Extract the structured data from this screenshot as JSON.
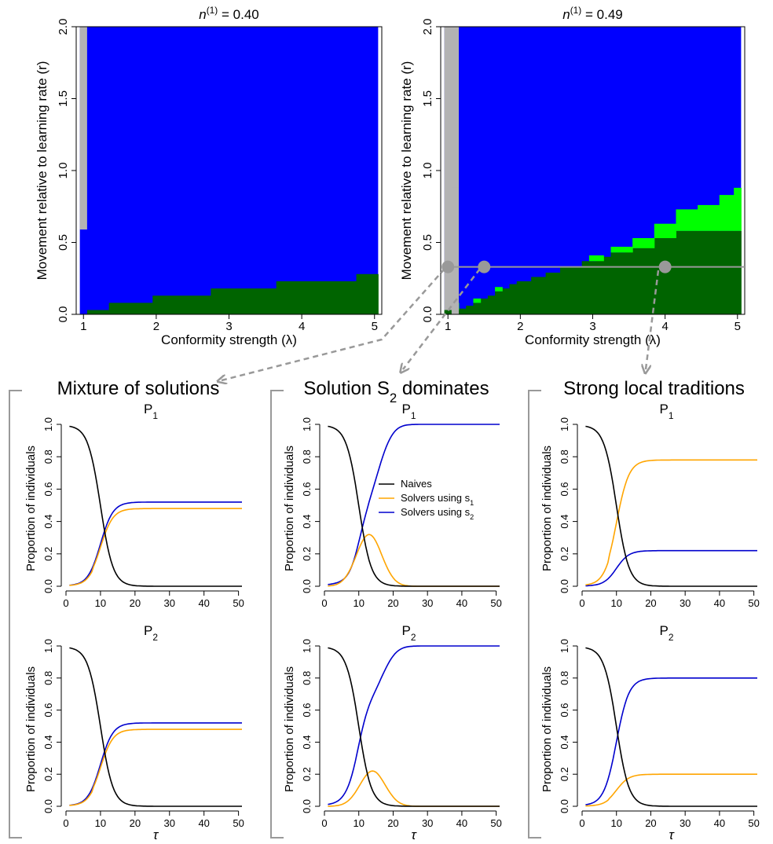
{
  "colors": {
    "gray": "#b3b3b3",
    "blue": "#0000ff",
    "darkgreen": "#006400",
    "lightgreen": "#00ff00",
    "naive": "#000000",
    "s1": "#ffa500",
    "s2": "#0000cd",
    "arrow": "#999999"
  },
  "heatmaps": [
    {
      "title_pre": "n",
      "title_sup": "(1)",
      "title_post": " = 0.40",
      "xlabel": "Conformity strength (λ)",
      "ylabel": "Movement relative to learning rate (r)",
      "xticks": [
        "1",
        "2",
        "3",
        "4",
        "5"
      ],
      "yticks": [
        "0.0",
        "0.5",
        "1.0",
        "1.5",
        "2.0"
      ],
      "xlim": [
        0.9,
        5.1
      ],
      "ylim": [
        0,
        2
      ],
      "gray_band": {
        "x": [
          0.95,
          1.05
        ],
        "r_min": 0.59
      },
      "dark_steps": [
        [
          1.05,
          1.35,
          0.03
        ],
        [
          1.35,
          1.95,
          0.08
        ],
        [
          1.95,
          2.75,
          0.13
        ],
        [
          2.75,
          3.65,
          0.18
        ],
        [
          3.65,
          4.75,
          0.23
        ],
        [
          4.75,
          5.05,
          0.28
        ]
      ],
      "light_steps": [],
      "line_r": null,
      "points": []
    },
    {
      "title_pre": "n",
      "title_sup": "(1)",
      "title_post": " = 0.49",
      "xlabel": "Conformity strength (λ)",
      "ylabel": "Movement relative to learning rate (r)",
      "xticks": [
        "1",
        "2",
        "3",
        "4",
        "5"
      ],
      "yticks": [
        "0.0",
        "0.5",
        "1.0",
        "1.5",
        "2.0"
      ],
      "xlim": [
        0.9,
        5.1
      ],
      "ylim": [
        0,
        2
      ],
      "gray_band": {
        "x": [
          0.95,
          1.15
        ],
        "r_min": 0.0
      },
      "dark_steps": [
        [
          1.05,
          1.15,
          0.03
        ],
        [
          1.15,
          1.25,
          0.04
        ],
        [
          1.25,
          1.35,
          0.06
        ],
        [
          1.35,
          1.45,
          0.08
        ],
        [
          1.45,
          1.55,
          0.11
        ],
        [
          1.55,
          1.65,
          0.13
        ],
        [
          1.65,
          1.75,
          0.16
        ],
        [
          1.75,
          1.85,
          0.18
        ],
        [
          1.85,
          1.95,
          0.21
        ],
        [
          1.95,
          2.15,
          0.23
        ],
        [
          2.15,
          2.35,
          0.26
        ],
        [
          2.35,
          2.55,
          0.29
        ],
        [
          2.55,
          2.85,
          0.33
        ],
        [
          2.85,
          3.05,
          0.37
        ],
        [
          3.05,
          3.25,
          0.4
        ],
        [
          3.25,
          3.45,
          0.43
        ],
        [
          3.45,
          3.65,
          0.46
        ],
        [
          3.65,
          3.85,
          0.49
        ],
        [
          3.85,
          4.15,
          0.53
        ],
        [
          4.15,
          5.05,
          0.58
        ]
      ],
      "light_steps": [
        [
          1.05,
          1.15,
          0.08
        ],
        [
          1.35,
          1.45,
          0.11
        ],
        [
          1.65,
          1.75,
          0.19
        ],
        [
          2.95,
          3.15,
          0.41
        ],
        [
          3.25,
          3.55,
          0.47
        ],
        [
          3.55,
          3.85,
          0.53
        ],
        [
          3.85,
          4.15,
          0.63
        ],
        [
          4.15,
          4.45,
          0.73
        ],
        [
          4.45,
          4.75,
          0.76
        ],
        [
          4.75,
          4.95,
          0.83
        ],
        [
          4.95,
          5.05,
          0.88
        ]
      ],
      "line_r": 0.33,
      "points": [
        [
          1.0,
          0.33
        ],
        [
          1.5,
          0.33
        ],
        [
          4.0,
          0.33
        ]
      ]
    }
  ],
  "panels": [
    {
      "title": "Mixture of solutions",
      "title_sub": ""
    },
    {
      "title": "Solution S",
      "title_sub": "2",
      "title_post": " dominates"
    },
    {
      "title": "Strong local traditions",
      "title_sub": ""
    }
  ],
  "subplot_labels": [
    {
      "main": "P",
      "sub": "1"
    },
    {
      "main": "P",
      "sub": "2"
    }
  ],
  "line_axes": {
    "ylabel": "Proportion of individuals",
    "xlabel": "τ",
    "xticks": [
      "0",
      "10",
      "20",
      "30",
      "40",
      "50"
    ],
    "yticks": [
      "0.0",
      "0.2",
      "0.4",
      "0.6",
      "0.8",
      "1.0"
    ]
  },
  "legend": [
    {
      "label": "Naives",
      "sub": "",
      "color": "#000000"
    },
    {
      "label": "Solvers using s",
      "sub": "1",
      "color": "#ffa500"
    },
    {
      "label": "Solvers using s",
      "sub": "2",
      "color": "#0000cd"
    }
  ],
  "chart_data": [
    {
      "type": "heatmap",
      "title": "n(1) = 0.40",
      "xlabel": "Conformity strength (λ)",
      "ylabel": "Movement relative to learning rate (r)",
      "xlim": [
        0.9,
        5.1
      ],
      "ylim": [
        0,
        2
      ]
    },
    {
      "type": "heatmap",
      "title": "n(1) = 0.49",
      "xlabel": "Conformity strength (λ)",
      "ylabel": "Movement relative to learning rate (r)",
      "xlim": [
        0.9,
        5.1
      ],
      "ylim": [
        0,
        2
      ]
    },
    {
      "type": "line",
      "panel": "Mixture of solutions",
      "x_range": [
        1,
        51
      ],
      "ylim": [
        0,
        1
      ],
      "P1": {
        "naive_mid": 10,
        "naive_start": 0.99,
        "s1_final": 0.48,
        "s2_final": 0.52
      },
      "P2": {
        "naive_mid": 10,
        "naive_start": 0.99,
        "s1_final": 0.48,
        "s2_final": 0.52
      }
    },
    {
      "type": "line",
      "panel": "Solution S2 dominates",
      "x_range": [
        1,
        51
      ],
      "ylim": [
        0,
        1
      ],
      "P1": {
        "naive_mid": 10,
        "naive_start": 0.99,
        "s1_peak": 0.32,
        "s1_peak_tau": 13,
        "s2_final": 1.0
      },
      "P2": {
        "naive_mid": 10,
        "naive_start": 0.99,
        "s1_peak": 0.22,
        "s1_peak_tau": 14,
        "s2_final": 1.0
      }
    },
    {
      "type": "line",
      "panel": "Strong local traditions",
      "x_range": [
        1,
        51
      ],
      "ylim": [
        0,
        1
      ],
      "P1": {
        "naive_mid": 10,
        "naive_start": 0.99,
        "s1_final": 0.78,
        "s2_final": 0.22
      },
      "P2": {
        "naive_mid": 10,
        "naive_start": 0.99,
        "s1_final": 0.2,
        "s2_final": 0.8
      }
    }
  ]
}
